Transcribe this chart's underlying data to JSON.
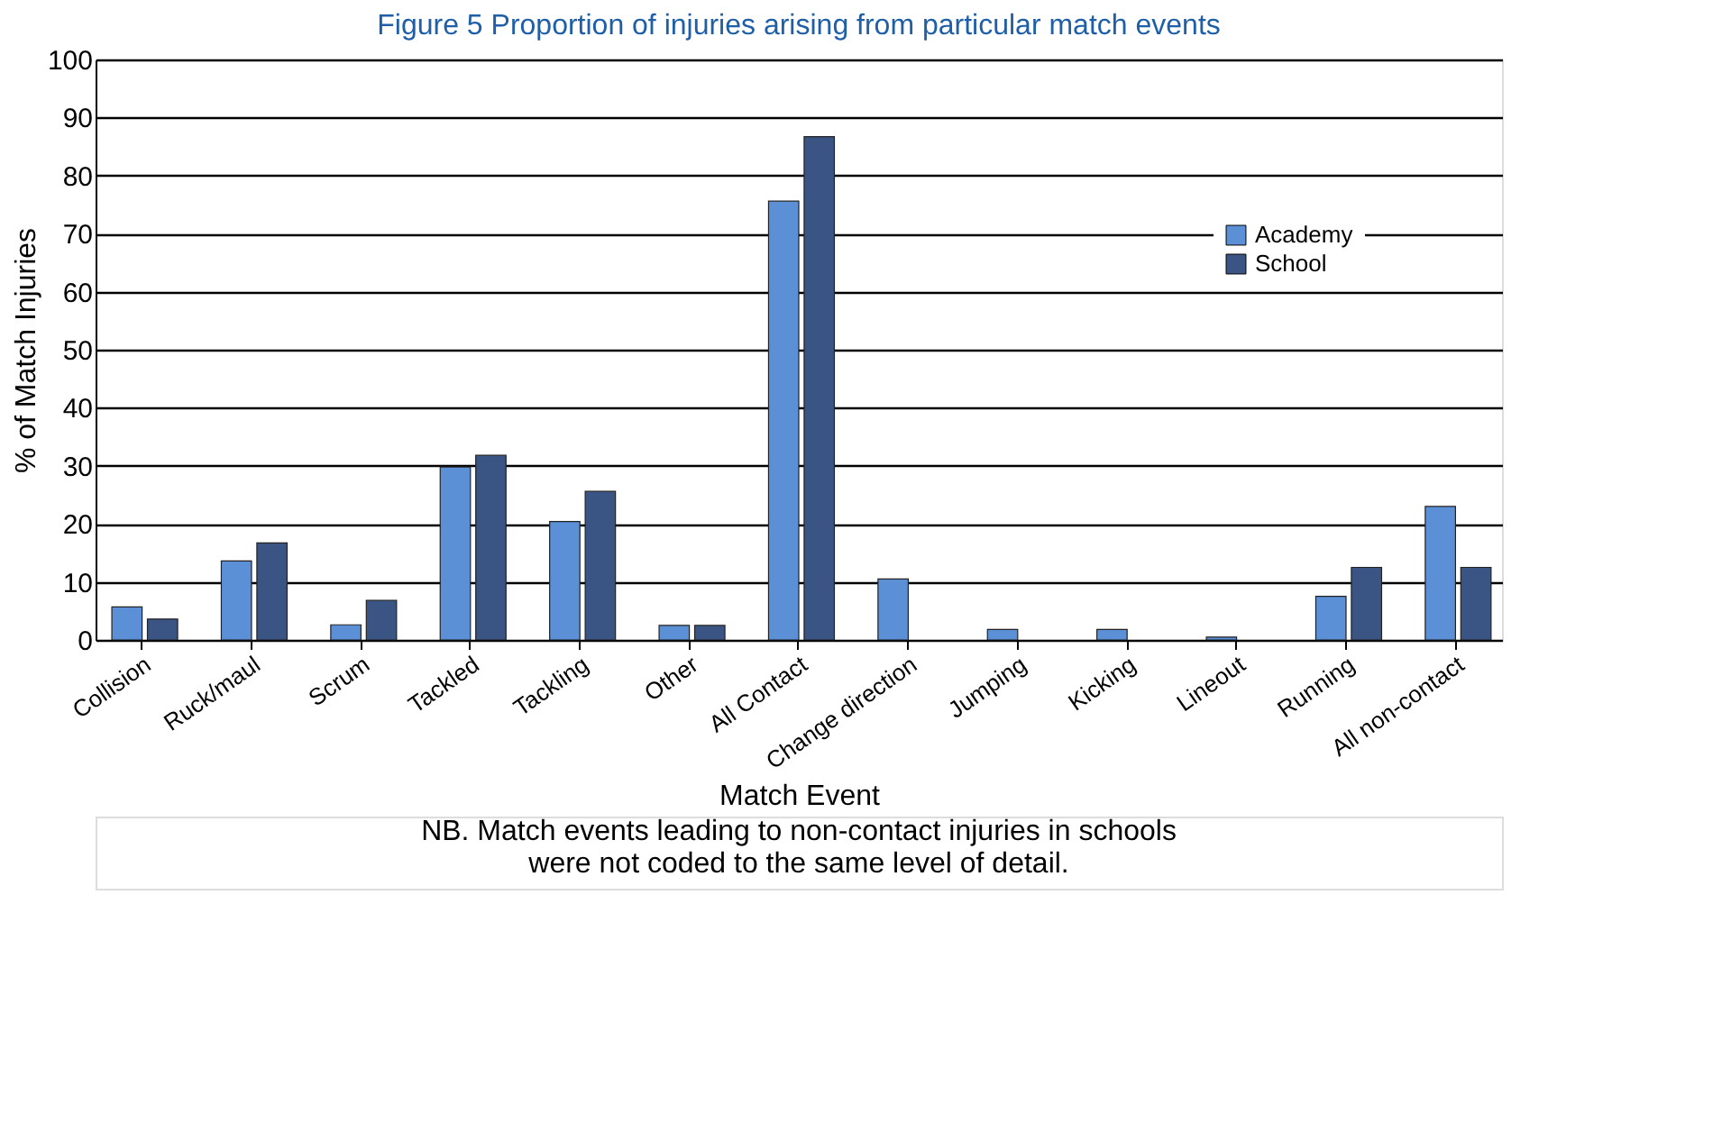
{
  "chart_data": {
    "type": "bar",
    "title": "Figure 5 Proportion of injuries arising from particular match events",
    "xlabel": "Match Event",
    "ylabel": "% of Match Injuries",
    "categories": [
      "Collision",
      "Ruck/maul",
      "Scrum",
      "Tackled",
      "Tackling",
      "Other",
      "All Contact",
      "Change direction",
      "Jumping",
      "Kicking",
      "Lineout",
      "Running",
      "All non-contact"
    ],
    "series": [
      {
        "name": "Academy",
        "color": "#5b8fd6",
        "values": [
          5.7,
          13.6,
          2.6,
          29.8,
          20.4,
          2.5,
          75.6,
          10.5,
          1.8,
          1.8,
          0.5,
          7.5,
          23
        ]
      },
      {
        "name": "School",
        "color": "#3a5584",
        "values": [
          3.6,
          16.7,
          6.8,
          31.8,
          25.6,
          2.5,
          86.7,
          null,
          null,
          null,
          null,
          12.5,
          12.5
        ]
      }
    ],
    "ylim": [
      0,
      100
    ],
    "yticks": [
      0,
      10,
      20,
      30,
      40,
      50,
      60,
      70,
      80,
      90,
      100
    ],
    "grid": "y",
    "legend": "right",
    "annotations": [
      "NB. Match events leading to non-contact injuries in schools were not coded to the same level of detail."
    ]
  }
}
